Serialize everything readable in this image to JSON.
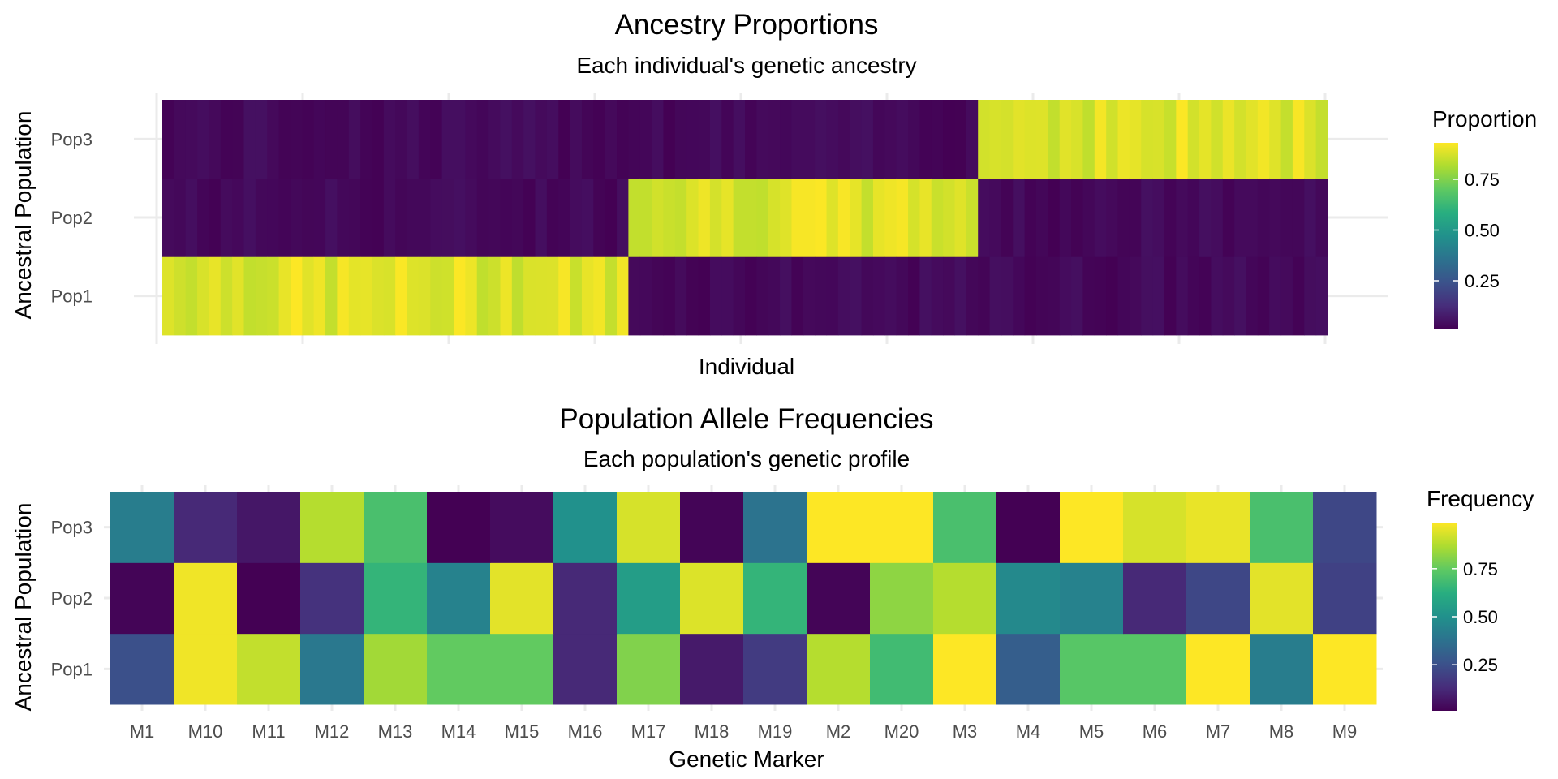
{
  "chart_data": [
    {
      "type": "heatmap",
      "title": "Ancestry Proportions",
      "subtitle": "Each individual's genetic ancestry",
      "xlabel": "Individual",
      "ylabel": "Ancestral Population",
      "y_categories": [
        "Pop1",
        "Pop2",
        "Pop3"
      ],
      "legend_title": "Proportion",
      "legend_ticks": [
        0.25,
        0.5,
        0.75
      ],
      "legend_tick_labels": [
        "0.25",
        "0.50",
        "0.75"
      ],
      "color_range": [
        0.01,
        0.93
      ],
      "colormap": "viridis",
      "individual_groups": [
        {
          "dominant": "Pop1",
          "count": 40
        },
        {
          "dominant": "Pop2",
          "count": 30
        },
        {
          "dominant": "Pop3",
          "count": 30
        }
      ]
    },
    {
      "type": "heatmap",
      "title": "Population Allele Frequencies",
      "subtitle": "Each population's genetic profile",
      "xlabel": "Genetic Marker",
      "ylabel": "Ancestral Population",
      "x_categories": [
        "M1",
        "M10",
        "M11",
        "M12",
        "M13",
        "M14",
        "M15",
        "M16",
        "M17",
        "M18",
        "M19",
        "M2",
        "M20",
        "M3",
        "M4",
        "M5",
        "M6",
        "M7",
        "M8",
        "M9"
      ],
      "y_categories": [
        "Pop1",
        "Pop2",
        "Pop3"
      ],
      "legend_title": "Frequency",
      "legend_ticks": [
        0.25,
        0.5,
        0.75
      ],
      "legend_tick_labels": [
        "0.25",
        "0.50",
        "0.75"
      ],
      "color_range": [
        0.01,
        0.99
      ],
      "colormap": "viridis",
      "values": {
        "Pop1": [
          0.25,
          0.97,
          0.9,
          0.4,
          0.85,
          0.75,
          0.75,
          0.12,
          0.8,
          0.08,
          0.18,
          0.88,
          0.68,
          0.99,
          0.3,
          0.73,
          0.73,
          0.99,
          0.42,
          0.99
        ],
        "Pop2": [
          0.02,
          0.97,
          0.01,
          0.15,
          0.65,
          0.44,
          0.95,
          0.12,
          0.55,
          0.94,
          0.65,
          0.02,
          0.82,
          0.88,
          0.47,
          0.44,
          0.12,
          0.22,
          0.95,
          0.2
        ],
        "Pop3": [
          0.42,
          0.12,
          0.07,
          0.88,
          0.7,
          0.01,
          0.04,
          0.5,
          0.93,
          0.02,
          0.38,
          0.99,
          0.99,
          0.7,
          0.01,
          0.99,
          0.93,
          0.96,
          0.7,
          0.22
        ]
      }
    }
  ]
}
